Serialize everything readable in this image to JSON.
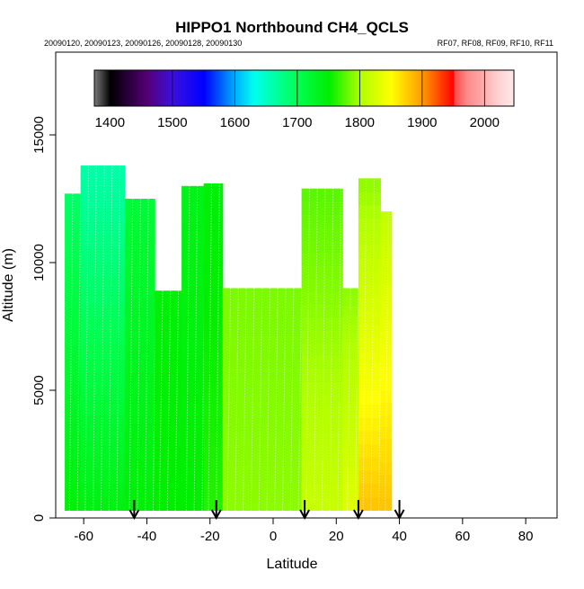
{
  "chart_data": {
    "type": "heatmap",
    "title": "HIPPO1 Northbound CH4_QCLS",
    "subtitle_left": "20090120, 20090123, 20090126, 20090128, 20090130",
    "subtitle_right": "RF07, RF08, RF09, RF10, RF11",
    "xlabel": "Latitude",
    "ylabel": "Altitude (m)",
    "xlim": [
      -69,
      90
    ],
    "ylim": [
      0,
      18200
    ],
    "xticks": [
      -60,
      -40,
      -20,
      0,
      20,
      40,
      60,
      80
    ],
    "yticks": [
      0,
      5000,
      10000,
      15000
    ],
    "colorbar": {
      "range": [
        1375,
        2047
      ],
      "ticks": [
        1400,
        1500,
        1600,
        1700,
        1800,
        1900,
        2000
      ],
      "stops": [
        [
          1375,
          "#777777"
        ],
        [
          1400,
          "#000000"
        ],
        [
          1460,
          "#55007a"
        ],
        [
          1500,
          "#3a10e0"
        ],
        [
          1550,
          "#0000ff"
        ],
        [
          1600,
          "#00b0ff"
        ],
        [
          1630,
          "#00ffee"
        ],
        [
          1700,
          "#00ff50"
        ],
        [
          1750,
          "#00ee00"
        ],
        [
          1800,
          "#b0ff00"
        ],
        [
          1850,
          "#ffff00"
        ],
        [
          1900,
          "#ff9900"
        ],
        [
          1950,
          "#ff0000"
        ],
        [
          1951,
          "#ff4848"
        ],
        [
          1970,
          "#ff8888"
        ],
        [
          2000,
          "#ffb0b0"
        ],
        [
          2020,
          "#ffd0d0"
        ],
        [
          2047,
          "#ffeaea"
        ]
      ]
    },
    "columns": [
      {
        "lat": [
          -66,
          -61
        ],
        "alt_top": 12700,
        "ch4_bottom": 1745,
        "ch4_top": 1690
      },
      {
        "lat": [
          -61,
          -47
        ],
        "alt_top": 13800,
        "ch4_bottom": 1740,
        "ch4_top": 1660
      },
      {
        "lat": [
          -47,
          -37.5
        ],
        "alt_top": 12500,
        "ch4_bottom": 1745,
        "ch4_top": 1715
      },
      {
        "lat": [
          -37.5,
          -29
        ],
        "alt_top": 8900,
        "ch4_bottom": 1750,
        "ch4_top": 1745
      },
      {
        "lat": [
          -29,
          -22
        ],
        "alt_top": 13000,
        "ch4_bottom": 1750,
        "ch4_top": 1735
      },
      {
        "lat": [
          -22,
          -16
        ],
        "alt_top": 13100,
        "ch4_bottom": 1760,
        "ch4_top": 1745
      },
      {
        "lat": [
          -16,
          9
        ],
        "alt_top": 9000,
        "ch4_bottom": 1790,
        "ch4_top": 1785
      },
      {
        "lat": [
          9,
          22
        ],
        "alt_top": 12900,
        "ch4_bottom": 1815,
        "ch4_top": 1775
      },
      {
        "lat": [
          22,
          27
        ],
        "alt_top": 9000,
        "ch4_bottom": 1830,
        "ch4_top": 1790
      },
      {
        "lat": [
          27,
          34
        ],
        "alt_top": 13300,
        "ch4_bottom": 1880,
        "ch4_top": 1790
      },
      {
        "lat": [
          34,
          37.5
        ],
        "alt_top": 12000,
        "ch4_bottom": 1880,
        "ch4_top": 1810
      }
    ],
    "data_bottom_alt": 300,
    "profile_arrows_lat": [
      -44,
      -18,
      10,
      27,
      40
    ]
  }
}
